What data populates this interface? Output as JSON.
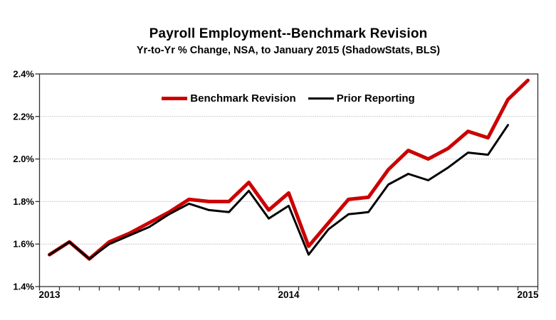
{
  "header": {
    "title": "Payroll Employment--Benchmark Revision",
    "subtitle": "Yr-to-Yr % Change, NSA, to January 2015 (ShadowStats, BLS)"
  },
  "legend": [
    {
      "label": "Benchmark Revision",
      "color": "#cc0000"
    },
    {
      "label": "Prior Reporting",
      "color": "#000000"
    }
  ],
  "colors": {
    "benchmark_line": "#cc0000",
    "prior_line": "#000000",
    "gridline": "#999999",
    "axis": "#303030",
    "background": "#ffffff"
  },
  "chart_data": {
    "type": "line",
    "title": "Payroll Employment--Benchmark Revision",
    "subtitle": "Yr-to-Yr % Change, NSA, to January 2015 (ShadowStats, BLS)",
    "xlabel": "",
    "ylabel": "",
    "ylim": [
      1.4,
      2.4
    ],
    "grid": "horizontal-dotted",
    "legend_position": "top-inside",
    "categories": [
      "Jan 2013",
      "Feb 2013",
      "Mar 2013",
      "Apr 2013",
      "May 2013",
      "Jun 2013",
      "Jul 2013",
      "Aug 2013",
      "Sep 2013",
      "Oct 2013",
      "Nov 2013",
      "Dec 2013",
      "Jan 2014",
      "Feb 2014",
      "Mar 2014",
      "Apr 2014",
      "May 2014",
      "Jun 2014",
      "Jul 2014",
      "Aug 2014",
      "Sep 2014",
      "Oct 2014",
      "Nov 2014",
      "Dec 2014",
      "Jan 2015"
    ],
    "x_axis_labels": [
      {
        "category_index": 0,
        "label": "2013"
      },
      {
        "category_index": 12,
        "label": "2014"
      },
      {
        "category_index": 24,
        "label": "2015"
      }
    ],
    "y_ticks": [
      {
        "value": 1.4,
        "label": "1.4%"
      },
      {
        "value": 1.6,
        "label": "1.6%"
      },
      {
        "value": 1.8,
        "label": "1.8%"
      },
      {
        "value": 2.0,
        "label": "2.0%"
      },
      {
        "value": 2.2,
        "label": "2.2%"
      },
      {
        "value": 2.4,
        "label": "2.4%"
      }
    ],
    "series": [
      {
        "name": "Benchmark Revision",
        "color": "#cc0000",
        "stroke_width": 5,
        "values": [
          1.55,
          1.61,
          1.53,
          1.61,
          1.65,
          1.7,
          1.75,
          1.81,
          1.8,
          1.8,
          1.89,
          1.76,
          1.84,
          1.59,
          1.7,
          1.81,
          1.82,
          1.95,
          2.04,
          2.0,
          2.05,
          2.13,
          2.1,
          2.28,
          2.37
        ]
      },
      {
        "name": "Prior Reporting",
        "color": "#000000",
        "stroke_width": 3,
        "values": [
          1.55,
          1.61,
          1.53,
          1.6,
          1.64,
          1.68,
          1.74,
          1.79,
          1.76,
          1.75,
          1.85,
          1.72,
          1.78,
          1.55,
          1.67,
          1.74,
          1.75,
          1.88,
          1.93,
          1.9,
          1.96,
          2.03,
          2.02,
          2.16,
          null
        ]
      }
    ]
  }
}
